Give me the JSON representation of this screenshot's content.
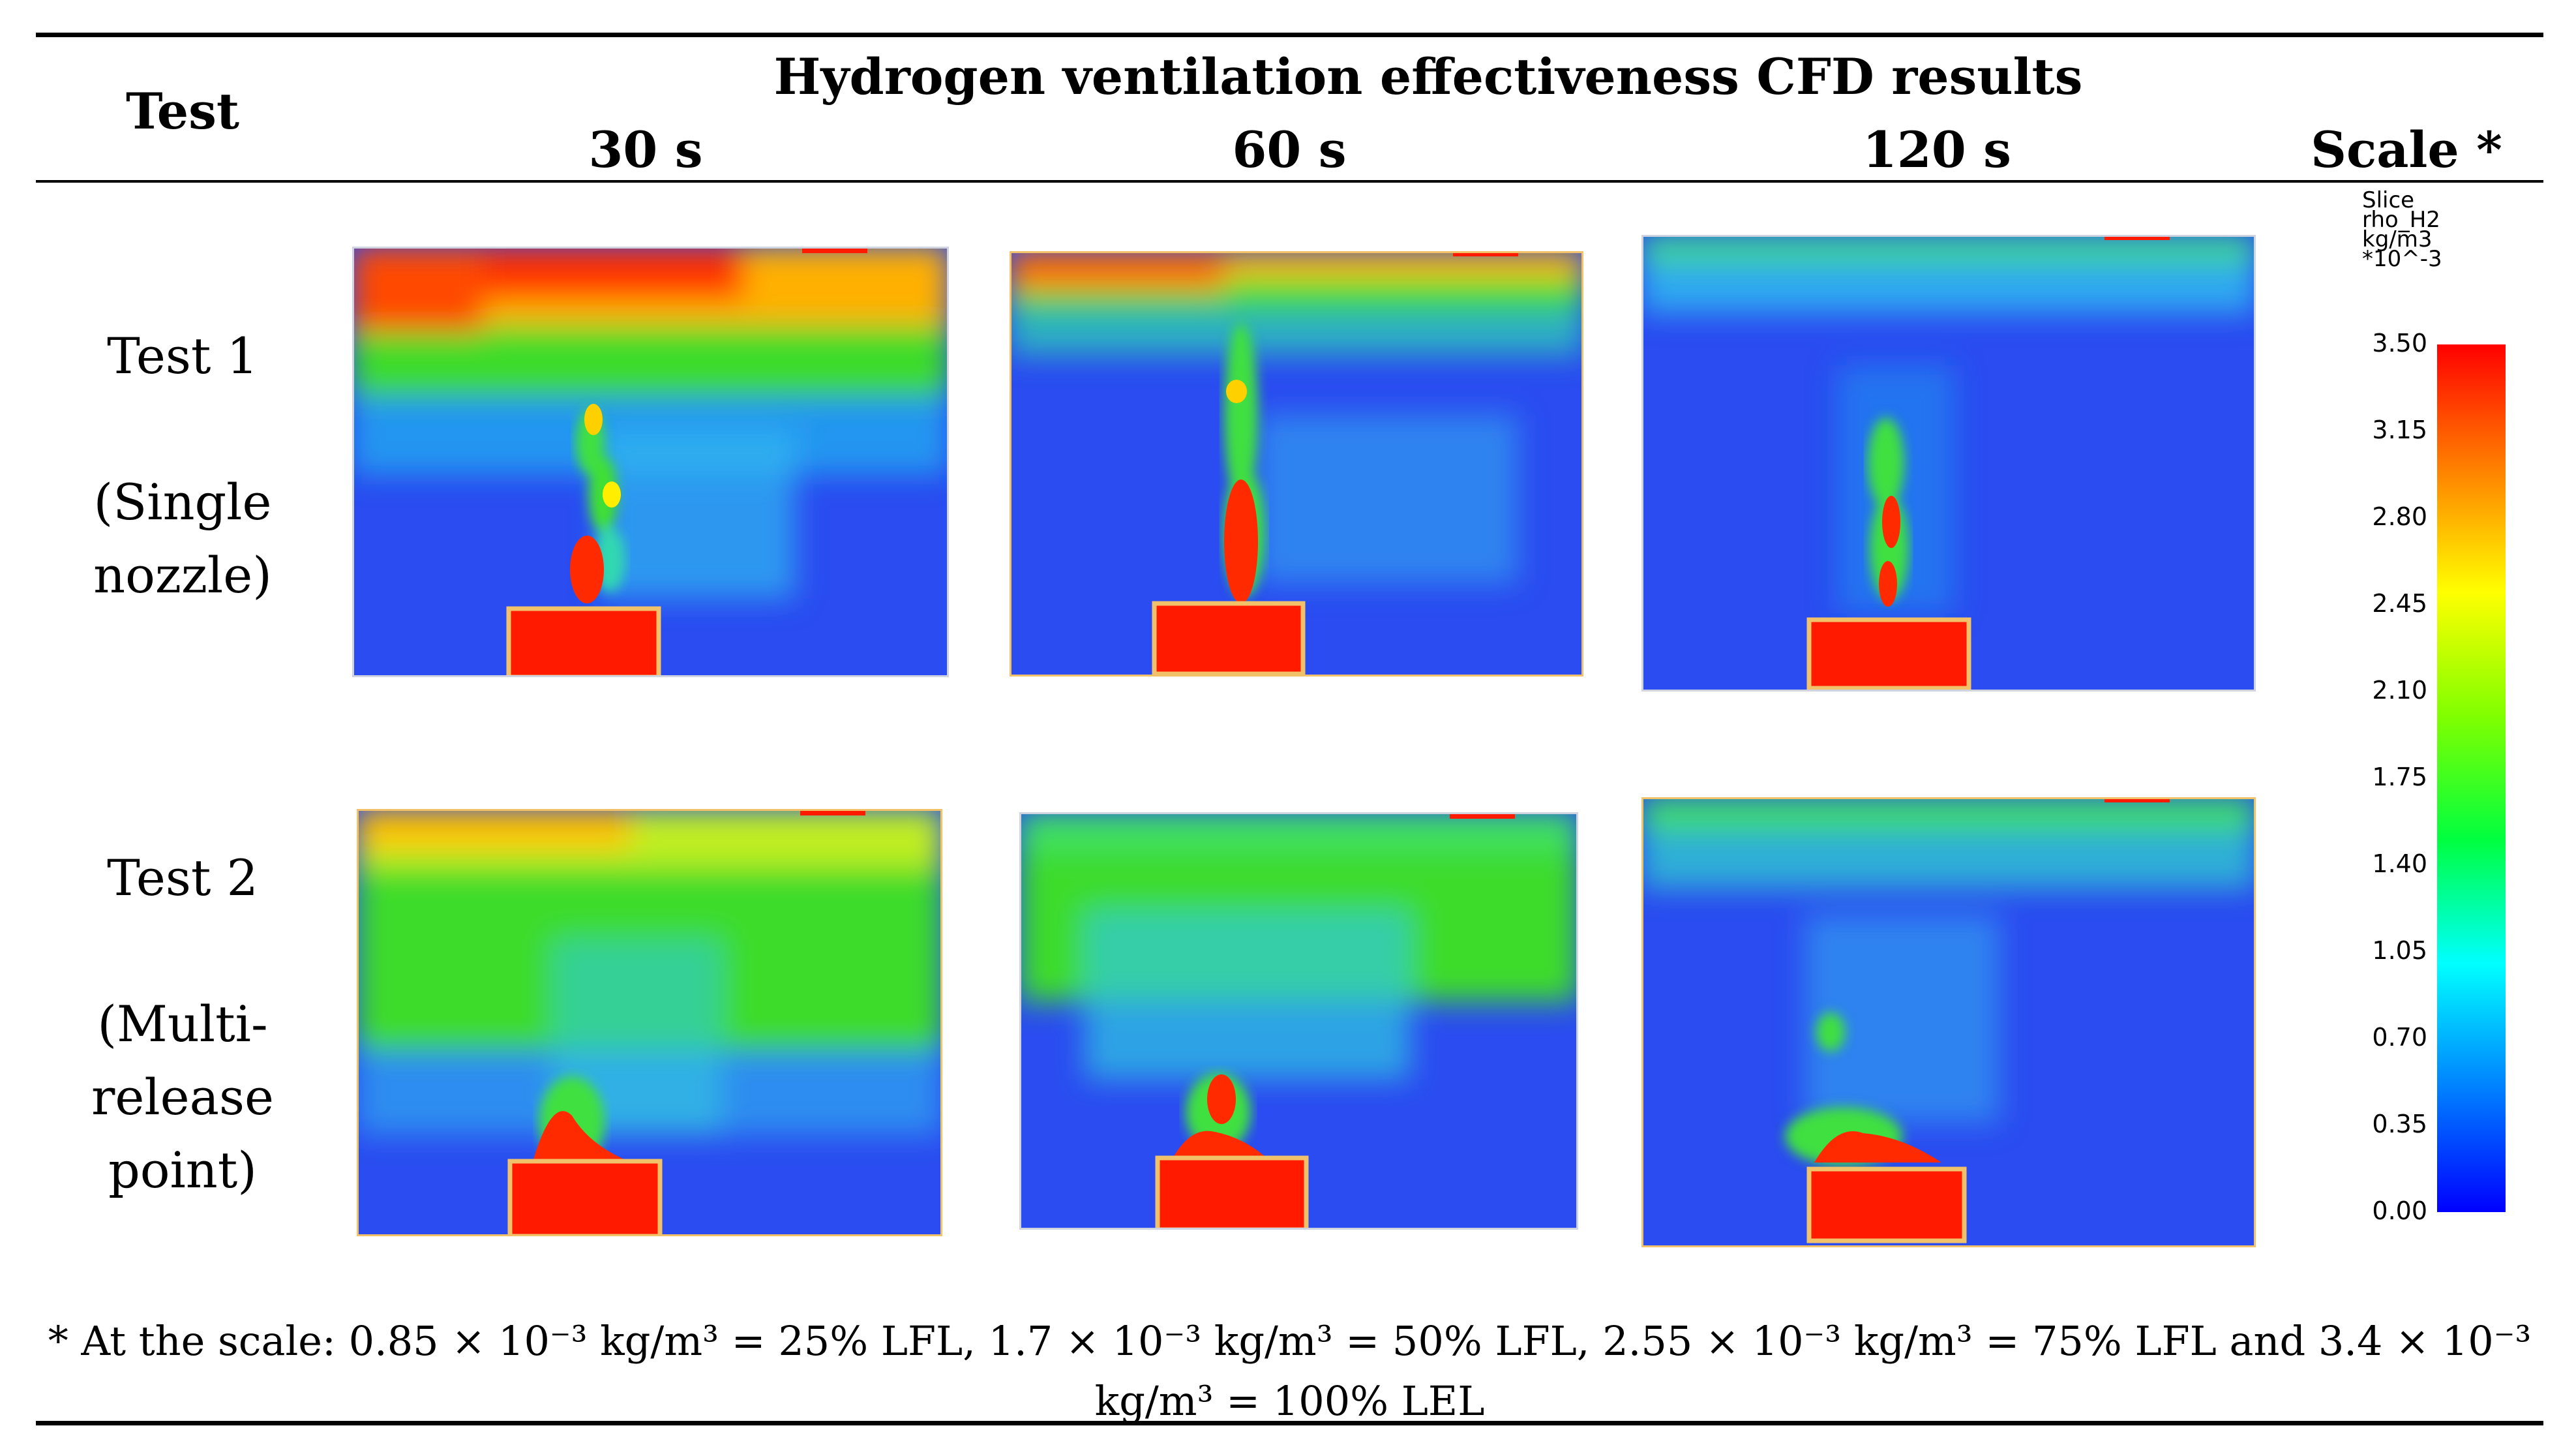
{
  "header": {
    "test_label": "Test",
    "title": "Hydrogen ventilation effectiveness CFD results",
    "times": [
      "30 s",
      "60 s",
      "120 s"
    ],
    "scale_label": "Scale *"
  },
  "rows": [
    {
      "label_lines": [
        "Test 1",
        "",
        "(Single",
        "nozzle)"
      ]
    },
    {
      "label_lines": [
        "Test 2",
        "",
        "(Multi-",
        "release",
        "point)"
      ]
    }
  ],
  "colorbar": {
    "header": "Slice\nrho_H2\nkg/m3\n*10^-3",
    "ticks": [
      "3.50",
      "3.15",
      "2.80",
      "2.45",
      "2.10",
      "1.75",
      "1.40",
      "1.05",
      "0.70",
      "0.35",
      "0.00"
    ],
    "min": 0.0,
    "max": 3.5,
    "colors": [
      "#0000ff",
      "#0080ff",
      "#00ffff",
      "#00ff40",
      "#80ff00",
      "#ffff00",
      "#ff8000",
      "#ff0000"
    ]
  },
  "footnote": {
    "text": "* At the scale: 0.85 × 10⁻³ kg/m³ = 25% LFL, 1.7 × 10⁻³ kg/m³ = 50% LFL, 2.55 × 10⁻³ kg/m³ = 75% LFL and 3.4 × 10⁻³ kg/m³ = 100% LEL"
  },
  "colors": {
    "domain_blue": "#2a4cf0",
    "hot_red": "#ff1a00",
    "box_outline": "#f2c26b"
  }
}
